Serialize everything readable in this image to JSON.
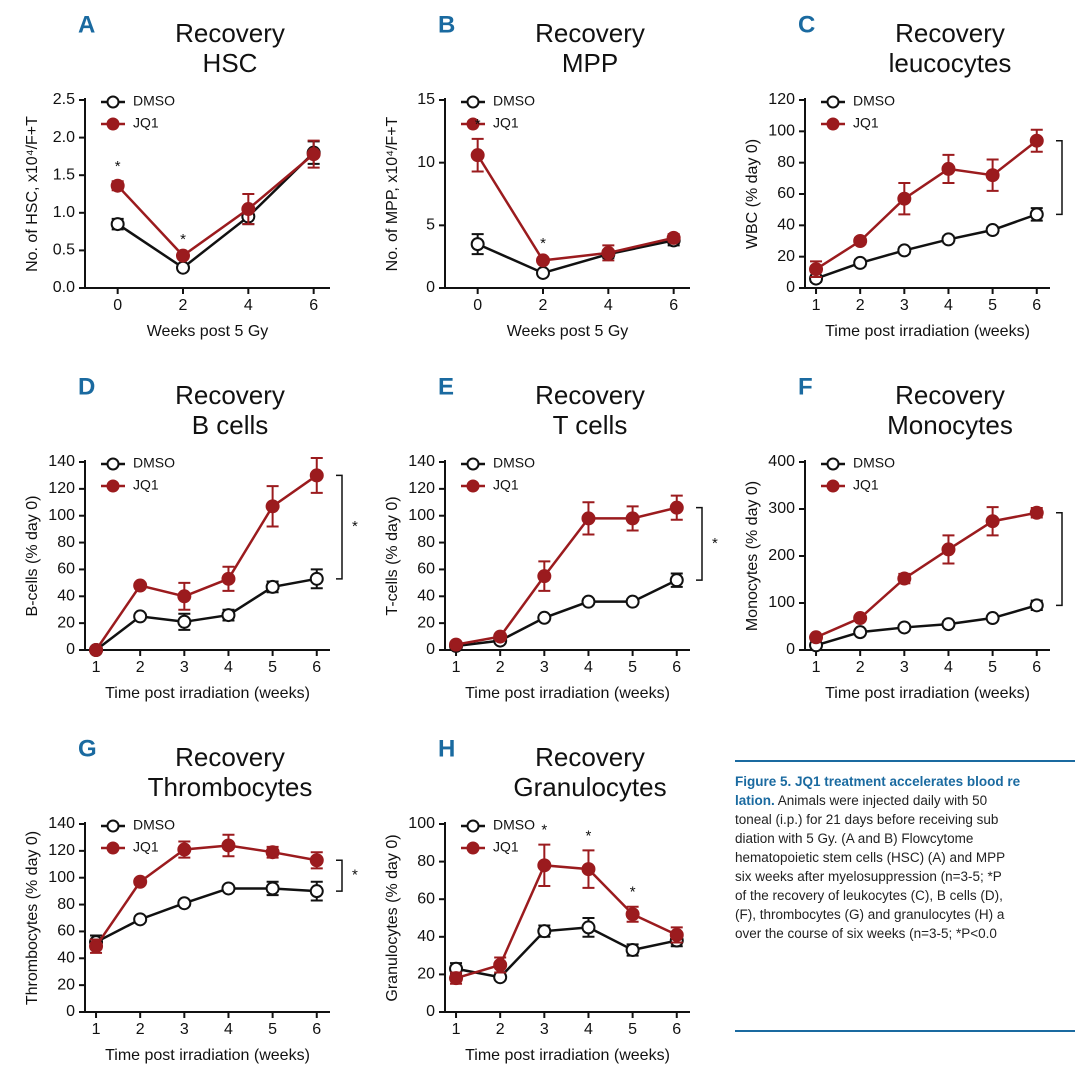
{
  "chart_data": [
    {
      "type": "line",
      "panel": "A",
      "title": [
        "Recovery",
        "HSC"
      ],
      "xlabel": "Weeks post 5 Gy",
      "ylabel": "No. of HSC, x10⁴/F+T",
      "x": [
        0,
        2,
        4,
        6
      ],
      "xlim": [
        -1,
        6.5
      ],
      "xticks": [
        0,
        2,
        4,
        6
      ],
      "ylim": [
        0,
        2.5
      ],
      "yticks": [
        {
          "value": 0,
          "label": "0.0"
        },
        0.5,
        {
          "value": 1,
          "label": "1.0"
        },
        1.5,
        {
          "value": 2,
          "label": "2.0"
        },
        2.5
      ],
      "series": [
        {
          "name": "DMSO",
          "color": "#111111",
          "values": [
            0.85,
            0.27,
            0.95,
            1.8
          ],
          "errors": [
            0.07,
            0.02,
            0.1,
            0.15
          ]
        },
        {
          "name": "JQ1",
          "color": "#9b1b1e",
          "values": [
            1.36,
            0.43,
            1.05,
            1.78
          ],
          "errors": [
            0.06,
            0.02,
            0.2,
            0.18
          ]
        }
      ],
      "annotations": [
        {
          "text": "*",
          "x": 0
        },
        {
          "text": "*",
          "x": 2
        }
      ]
    },
    {
      "type": "line",
      "panel": "B",
      "title": [
        "Recovery",
        "MPP"
      ],
      "xlabel": "Weeks post 5 Gy",
      "ylabel": "No. of MPP, x10⁴/F+T",
      "x": [
        0,
        2,
        4,
        6
      ],
      "xlim": [
        -1,
        6.5
      ],
      "xticks": [
        0,
        2,
        4,
        6
      ],
      "ylim": [
        0,
        15
      ],
      "yticks": [
        0,
        5,
        10,
        15
      ],
      "series": [
        {
          "name": "DMSO",
          "color": "#111111",
          "values": [
            3.5,
            1.2,
            2.7,
            3.8
          ],
          "errors": [
            0.8,
            0.1,
            0.3,
            0.4
          ]
        },
        {
          "name": "JQ1",
          "color": "#9b1b1e",
          "values": [
            10.6,
            2.2,
            2.8,
            4.0
          ],
          "errors": [
            1.3,
            0.2,
            0.6,
            0.3
          ]
        }
      ],
      "annotations": [
        {
          "text": "*",
          "x": 0
        },
        {
          "text": "*",
          "x": 2
        }
      ]
    },
    {
      "type": "line",
      "panel": "C",
      "title": [
        "Recovery",
        "leucocytes"
      ],
      "xlabel": "Time post irradiation (weeks)",
      "ylabel": "WBC (% day 0)",
      "x": [
        1,
        2,
        3,
        4,
        5,
        6
      ],
      "xlim": [
        0.75,
        6.3
      ],
      "xticks": [
        1,
        2,
        3,
        4,
        5,
        6
      ],
      "ylim": [
        0,
        120
      ],
      "yticks": [
        0,
        20,
        40,
        60,
        80,
        100,
        120
      ],
      "series": [
        {
          "name": "DMSO",
          "color": "#111111",
          "values": [
            6,
            16,
            24,
            31,
            37,
            47
          ],
          "errors": [
            2,
            2,
            2,
            2,
            2,
            4
          ]
        },
        {
          "name": "JQ1",
          "color": "#9b1b1e",
          "values": [
            12,
            30,
            57,
            76,
            72,
            94
          ],
          "errors": [
            5,
            2,
            10,
            9,
            10,
            7
          ]
        }
      ],
      "bracket": true
    },
    {
      "type": "line",
      "panel": "D",
      "title": [
        "Recovery",
        "B cells"
      ],
      "xlabel": "Time post irradiation (weeks)",
      "ylabel": "B-cells (% day 0)",
      "x": [
        1,
        2,
        3,
        4,
        5,
        6
      ],
      "xlim": [
        0.75,
        6.3
      ],
      "xticks": [
        1,
        2,
        3,
        4,
        5,
        6
      ],
      "ylim": [
        0,
        140
      ],
      "yticks": [
        0,
        20,
        40,
        60,
        80,
        100,
        120,
        140
      ],
      "series": [
        {
          "name": "DMSO",
          "color": "#111111",
          "values": [
            0,
            25,
            21,
            26,
            47,
            53
          ],
          "errors": [
            0,
            2,
            6,
            4,
            4,
            7
          ]
        },
        {
          "name": "JQ1",
          "color": "#9b1b1e",
          "values": [
            0,
            48,
            40,
            53,
            107,
            130
          ],
          "errors": [
            0,
            2,
            10,
            9,
            15,
            13
          ]
        }
      ],
      "bracket": true,
      "bracket_label": "*"
    },
    {
      "type": "line",
      "panel": "E",
      "title": [
        "Recovery",
        "T cells"
      ],
      "xlabel": "Time post irradiation (weeks)",
      "ylabel": "T-cells (% day 0)",
      "x": [
        1,
        2,
        3,
        4,
        5,
        6
      ],
      "xlim": [
        0.75,
        6.3
      ],
      "xticks": [
        1,
        2,
        3,
        4,
        5,
        6
      ],
      "ylim": [
        0,
        140
      ],
      "yticks": [
        0,
        20,
        40,
        60,
        80,
        100,
        120,
        140
      ],
      "series": [
        {
          "name": "DMSO",
          "color": "#111111",
          "values": [
            3,
            7,
            24,
            36,
            36,
            52
          ],
          "errors": [
            1,
            1,
            2,
            2,
            2,
            5
          ]
        },
        {
          "name": "JQ1",
          "color": "#9b1b1e",
          "values": [
            4,
            10,
            55,
            98,
            98,
            106
          ],
          "errors": [
            1,
            1,
            11,
            12,
            9,
            9
          ]
        }
      ],
      "bracket": true,
      "bracket_label": "*"
    },
    {
      "type": "line",
      "panel": "F",
      "title": [
        "Recovery",
        "Monocytes"
      ],
      "xlabel": "Time post irradiation (weeks)",
      "ylabel": "Monocytes (% day 0)",
      "x": [
        1,
        2,
        3,
        4,
        5,
        6
      ],
      "xlim": [
        0.75,
        6.3
      ],
      "xticks": [
        1,
        2,
        3,
        4,
        5,
        6
      ],
      "ylim": [
        0,
        400
      ],
      "yticks": [
        0,
        100,
        200,
        300,
        400
      ],
      "series": [
        {
          "name": "DMSO",
          "color": "#111111",
          "values": [
            10,
            38,
            48,
            55,
            68,
            95
          ],
          "errors": [
            3,
            4,
            4,
            4,
            5,
            10
          ]
        },
        {
          "name": "JQ1",
          "color": "#9b1b1e",
          "values": [
            27,
            68,
            152,
            214,
            274,
            292
          ],
          "errors": [
            4,
            5,
            10,
            30,
            30,
            10
          ]
        }
      ],
      "bracket": true
    },
    {
      "type": "line",
      "panel": "G",
      "title": [
        "Recovery",
        "Thrombocytes"
      ],
      "xlabel": "Time post irradiation (weeks)",
      "ylabel": "Thrombocytes (% day 0)",
      "x": [
        1,
        2,
        3,
        4,
        5,
        6
      ],
      "xlim": [
        0.75,
        6.3
      ],
      "xticks": [
        1,
        2,
        3,
        4,
        5,
        6
      ],
      "ylim": [
        0,
        140
      ],
      "yticks": [
        0,
        20,
        40,
        60,
        80,
        100,
        120,
        140
      ],
      "series": [
        {
          "name": "DMSO",
          "color": "#111111",
          "values": [
            52,
            69,
            81,
            92,
            92,
            90
          ],
          "errors": [
            5,
            2,
            2,
            2,
            5,
            7
          ]
        },
        {
          "name": "JQ1",
          "color": "#9b1b1e",
          "values": [
            49,
            97,
            121,
            124,
            119,
            113
          ],
          "errors": [
            5,
            2,
            6,
            8,
            4,
            6
          ]
        }
      ],
      "bracket": true,
      "bracket_label": "*"
    },
    {
      "type": "line",
      "panel": "H",
      "title": [
        "Recovery",
        "Granulocytes"
      ],
      "xlabel": "Time post irradiation (weeks)",
      "ylabel": "Granulocytes (% day 0)",
      "x": [
        1,
        2,
        3,
        4,
        5,
        6
      ],
      "xlim": [
        0.75,
        6.3
      ],
      "xticks": [
        1,
        2,
        3,
        4,
        5,
        6
      ],
      "ylim": [
        0,
        100
      ],
      "yticks": [
        0,
        20,
        40,
        60,
        80,
        100
      ],
      "series": [
        {
          "name": "DMSO",
          "color": "#111111",
          "values": [
            23,
            18.5,
            43,
            45,
            33,
            38
          ],
          "errors": [
            3,
            1,
            3,
            5,
            3,
            3
          ]
        },
        {
          "name": "JQ1",
          "color": "#9b1b1e",
          "values": [
            18,
            25,
            78,
            76,
            52,
            41
          ],
          "errors": [
            3,
            4,
            11,
            10,
            4,
            4
          ]
        }
      ],
      "annotations": [
        {
          "text": "*",
          "x": 3
        },
        {
          "text": "*",
          "x": 4
        },
        {
          "text": "*",
          "x": 5
        }
      ]
    }
  ],
  "caption": {
    "heading": [
      "Figure 5. JQ1 treatment accelerates blood re",
      "lation."
    ],
    "body": [
      "Animals were injected daily with 50",
      "toneal (i.p.) for 21 days before receiving sub",
      "diation with 5 Gy. (A and B) Flowcytome",
      "hematopoietic stem cells (HSC) (A) and MPP",
      "six weeks after myelosuppression (n=3-5; *P",
      "of the recovery of leukocytes (C), B cells (D),",
      "(F), thrombocytes (G) and granulocytes (H) a",
      "over the course of six weeks (n=3-5; *P<0.0"
    ]
  }
}
